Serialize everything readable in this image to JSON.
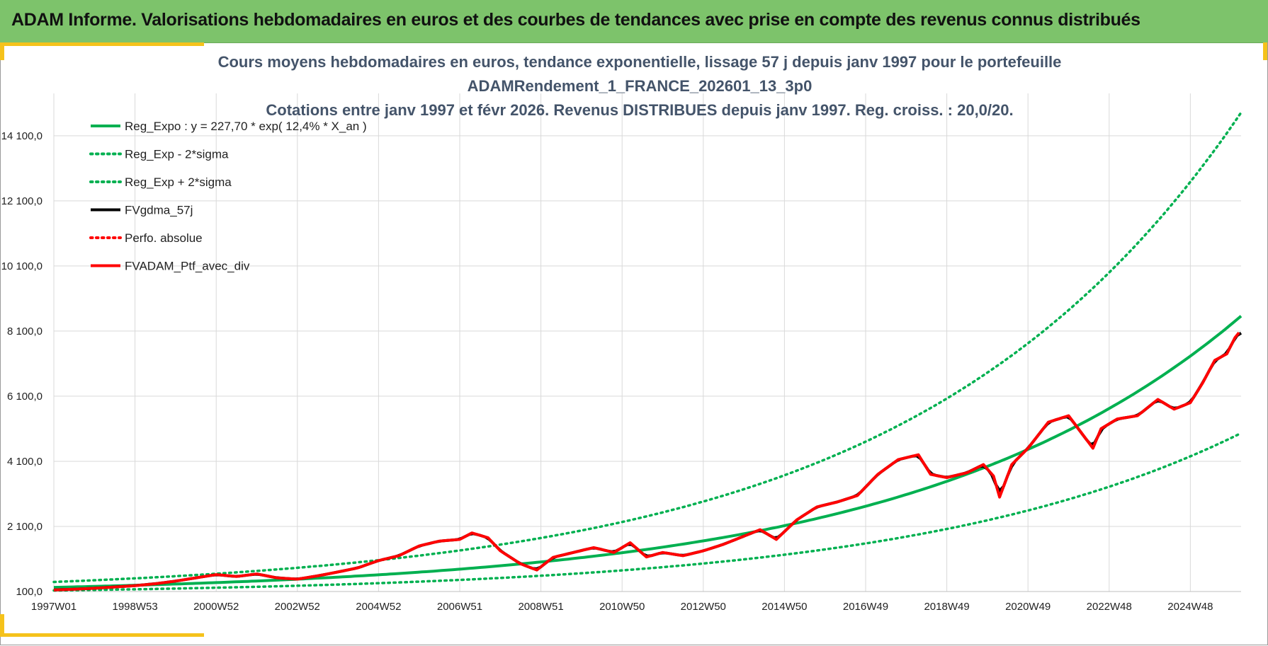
{
  "header": {
    "title": "ADAM Informe. Valorisations hebdomadaires en euros et des courbes de tendances avec prise en compte des revenus connus distribués"
  },
  "chart_data": {
    "type": "line",
    "title": [
      "Cours moyens hebdomadaires  en euros, tendance exponentielle, lissage 57 j depuis janv 1997 pour le portefeuille",
      "ADAMRendement_1_FRANCE_202601_13_3p0",
      "Cotations  entre janv 1997 et févr 2026. Revenus DISTRIBUES depuis janv 1997. Reg. croiss. : 20,0/20."
    ],
    "xlabel": "",
    "ylabel": "",
    "x_tick_labels": [
      "1997W01",
      "1998W53",
      "2000W52",
      "2002W52",
      "2004W52",
      "2006W51",
      "2008W51",
      "2010W50",
      "2012W50",
      "2014W50",
      "2016W49",
      "2018W49",
      "2020W49",
      "2022W48",
      "2024W48"
    ],
    "x_tick_years": [
      1997.0,
      1999.0,
      2001.0,
      2003.0,
      2005.0,
      2007.0,
      2009.0,
      2011.0,
      2013.0,
      2015.0,
      2017.0,
      2019.0,
      2021.0,
      2023.0,
      2025.0
    ],
    "xlim": [
      1997.0,
      2026.25
    ],
    "y_tick_labels": [
      "100,0",
      "2 100,0",
      "4 100,0",
      "6 100,0",
      "8 100,0",
      "10 100,0",
      "12 100,0",
      "14 100,0"
    ],
    "y_tick_values": [
      100,
      2100,
      4100,
      6100,
      8100,
      10100,
      12100,
      14100
    ],
    "ylim": [
      100,
      15400
    ],
    "grid": true,
    "legend_position": "top-left",
    "series": [
      {
        "name": "Reg_Expo : y = 227,70 * exp( 12,4% *  X_an )",
        "color": "#00b050",
        "style": "solid",
        "kind": "reg_expo",
        "a": 227.7,
        "b": 0.124
      },
      {
        "name": "Reg_Exp - 2*sigma",
        "color": "#00b050",
        "style": "dotted",
        "kind": "reg_low",
        "factor": 0.58
      },
      {
        "name": "Reg_Exp + 2*sigma",
        "color": "#00b050",
        "style": "dotted",
        "kind": "reg_high",
        "factor": 1.73
      },
      {
        "name": "FVgdma_57j",
        "color": "#000000",
        "style": "solid",
        "kind": "smoothed"
      },
      {
        "name": "Perfo. absolue",
        "color": "#ff0000",
        "style": "dotted",
        "kind": "hidden"
      },
      {
        "name": "FVADAM_Ptf_avec_div",
        "color": "#ff0000",
        "style": "solid",
        "kind": "portfolio",
        "x": [
          1997.0,
          1997.5,
          1998.0,
          1998.5,
          1999.0,
          1999.5,
          2000.0,
          2000.5,
          2001.0,
          2001.5,
          2002.0,
          2002.5,
          2003.0,
          2003.5,
          2004.0,
          2004.5,
          2005.0,
          2005.5,
          2006.0,
          2006.5,
          2007.0,
          2007.3,
          2007.7,
          2008.0,
          2008.5,
          2008.9,
          2009.3,
          2009.8,
          2010.3,
          2010.8,
          2011.2,
          2011.6,
          2012.0,
          2012.5,
          2013.0,
          2013.5,
          2014.0,
          2014.4,
          2014.8,
          2015.3,
          2015.8,
          2016.3,
          2016.8,
          2017.3,
          2017.8,
          2018.3,
          2018.6,
          2019.0,
          2019.5,
          2019.9,
          2020.15,
          2020.3,
          2020.6,
          2021.0,
          2021.5,
          2022.0,
          2022.3,
          2022.6,
          2022.8,
          2023.2,
          2023.7,
          2024.2,
          2024.6,
          2025.0,
          2025.3,
          2025.6,
          2025.9,
          2026.1,
          2026.2
        ],
        "y": [
          150,
          170,
          200,
          240,
          280,
          340,
          420,
          520,
          620,
          560,
          640,
          520,
          480,
          580,
          700,
          830,
          1050,
          1200,
          1500,
          1650,
          1700,
          1900,
          1750,
          1350,
          950,
          760,
          1150,
          1300,
          1450,
          1300,
          1600,
          1160,
          1300,
          1200,
          1350,
          1550,
          1800,
          2000,
          1700,
          2300,
          2700,
          2850,
          3050,
          3700,
          4150,
          4300,
          3700,
          3600,
          3750,
          4000,
          3650,
          3000,
          4000,
          4500,
          5300,
          5500,
          5000,
          4500,
          5100,
          5400,
          5500,
          6000,
          5700,
          5900,
          6500,
          7200,
          7400,
          7900,
          8050
        ]
      }
    ]
  }
}
